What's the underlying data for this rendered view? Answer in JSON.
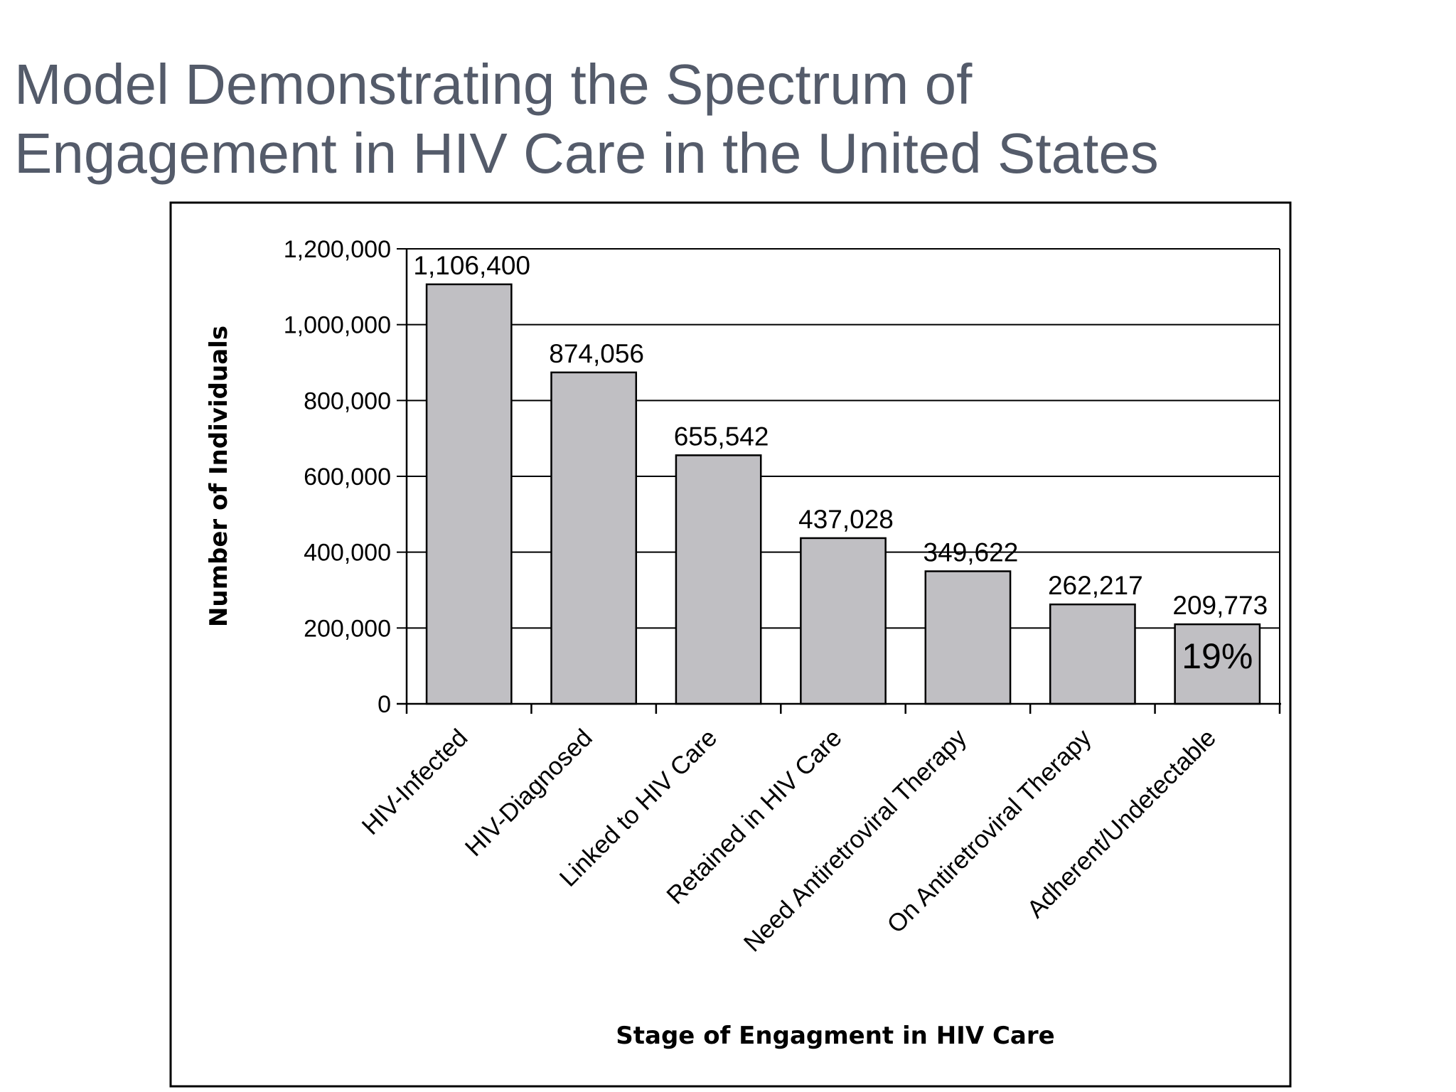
{
  "slide": {
    "title_line1": "Model Demonstrating the Spectrum of",
    "title_line2": "Engagement in HIV Care in the United States"
  },
  "colors": {
    "title": "#545b6a",
    "bar_fill": "#c0bfc3",
    "bar_stroke": "#000000",
    "gridline": "#000000",
    "frame": "#000000"
  },
  "chart_data": {
    "type": "bar",
    "categories": [
      "HIV-Infected",
      "HIV-Diagnosed",
      "Linked to HIV Care",
      "Retained in HIV Care",
      "Need Antiretroviral Therapy",
      "On Antiretroviral Therapy",
      "Adherent/Undetectable"
    ],
    "values": [
      1106400,
      874056,
      655542,
      437028,
      349622,
      262217,
      209773
    ],
    "data_labels": [
      "1,106,400",
      "874,056",
      "655,542",
      "437,028",
      "349,622",
      "262,217",
      "209,773"
    ],
    "xlabel": "Stage of Engagment in HIV Care",
    "ylabel": "Number of Individuals",
    "ylim": [
      0,
      1200000
    ],
    "yticks": [
      0,
      200000,
      400000,
      600000,
      800000,
      1000000,
      1200000
    ],
    "ytick_labels": [
      "0",
      "200,000",
      "400,000",
      "600,000",
      "800,000",
      "1,000,000",
      "1,200,000"
    ],
    "grid": true,
    "legend": "none",
    "annotations": [
      {
        "category": "Adherent/Undetectable",
        "text": "19%"
      }
    ]
  }
}
